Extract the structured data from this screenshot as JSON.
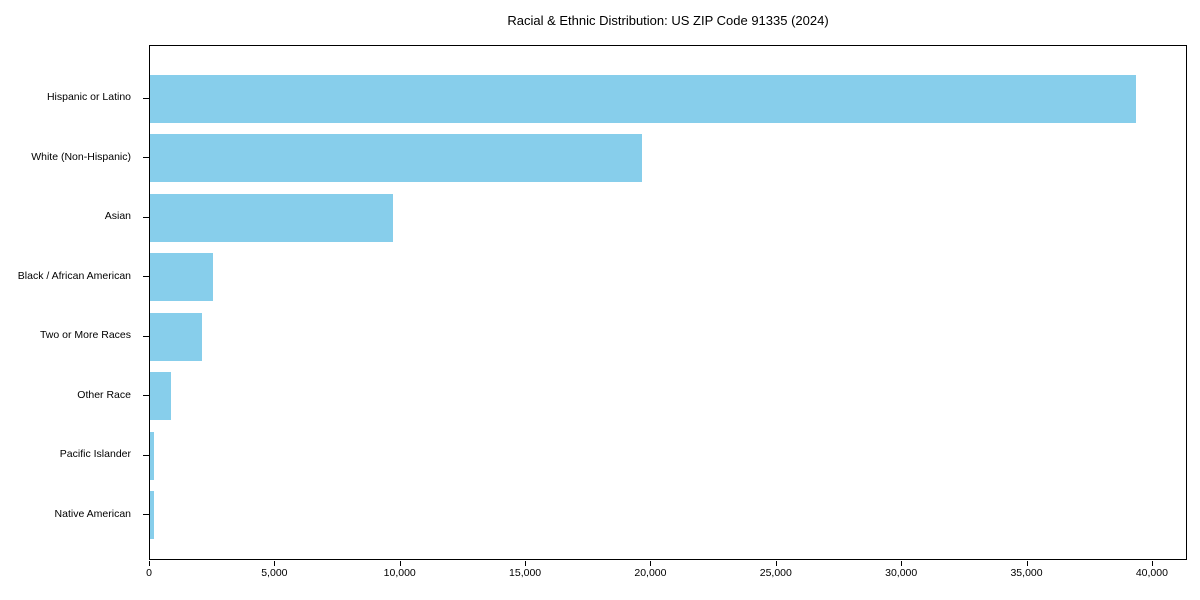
{
  "chart_data": {
    "type": "bar",
    "orientation": "horizontal",
    "title": "Racial & Ethnic Distribution: US ZIP Code 91335 (2024)",
    "categories": [
      "Hispanic or Latino",
      "White (Non-Hispanic)",
      "Asian",
      "Black / African American",
      "Two or More Races",
      "Other Race",
      "Pacific Islander",
      "Native American"
    ],
    "values": [
      39400,
      19650,
      9720,
      2510,
      2080,
      850,
      140,
      160
    ],
    "xlabel": "",
    "ylabel": "",
    "xlim": [
      0,
      41400
    ],
    "xtick_values": [
      0,
      5000,
      10000,
      15000,
      20000,
      25000,
      30000,
      35000,
      40000
    ],
    "xtick_labels": [
      "0",
      "5,000",
      "10,000",
      "15,000",
      "20,000",
      "25,000",
      "30,000",
      "35,000",
      "40,000"
    ],
    "bar_color": "#87CEEB",
    "background_color": "#ffffff",
    "grid": false,
    "legend": null
  }
}
